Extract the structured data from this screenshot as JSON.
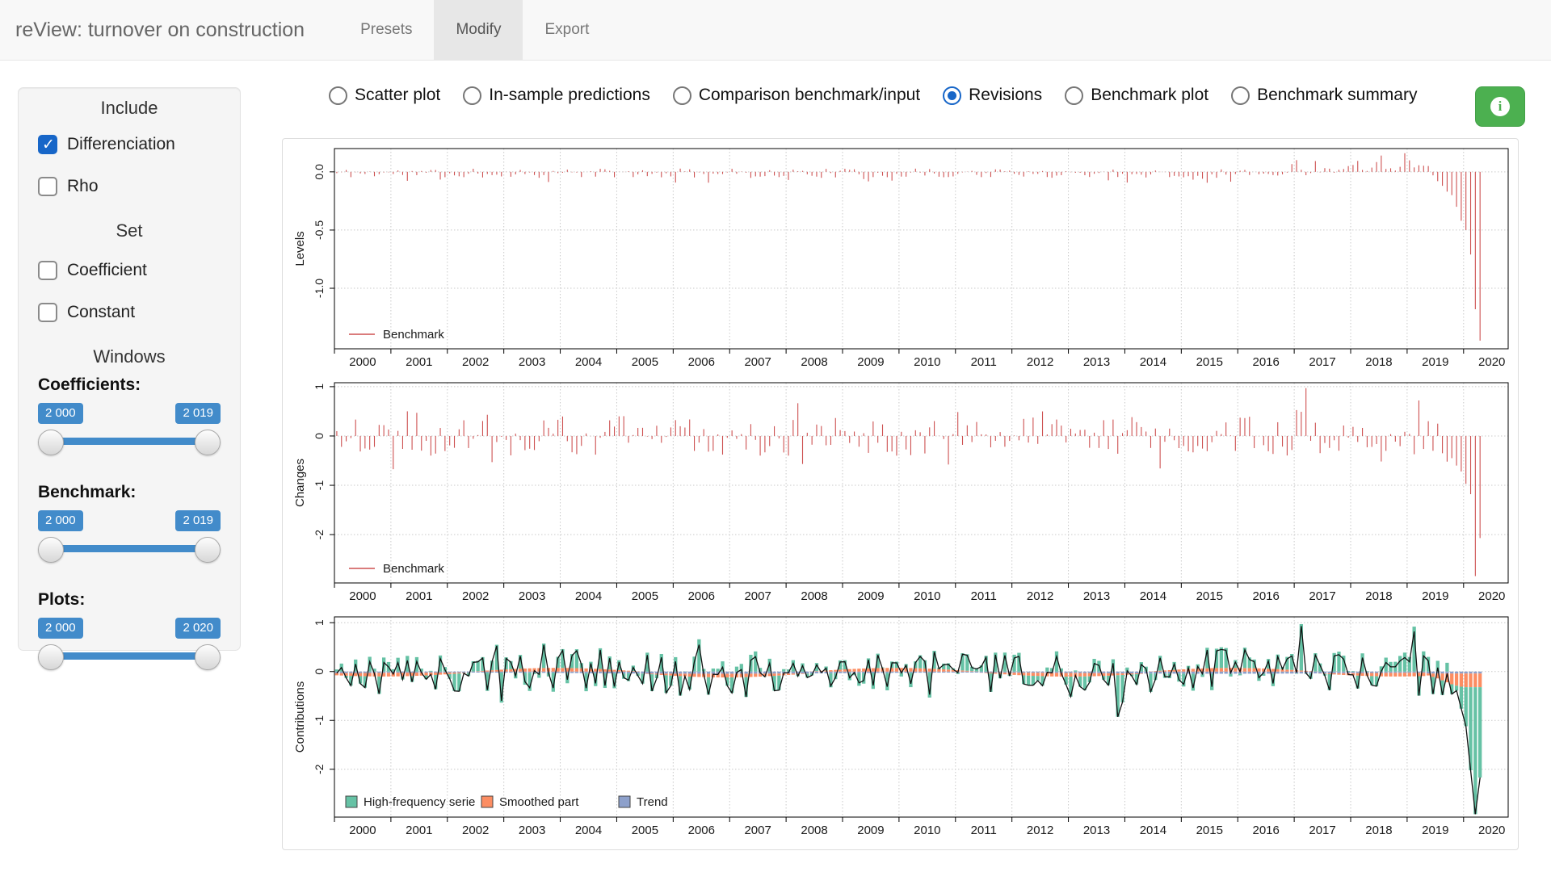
{
  "colors": {
    "accent_blue": "#428bca",
    "selection_blue": "#1766c8",
    "benchmark_red": "#cd5050",
    "hf_green": "#66c2a5",
    "smoothed_orange": "#fc8d62",
    "trend_blue": "#8da0cb",
    "button_green": "#4cb050"
  },
  "header": {
    "title": "reView: turnover on construction",
    "tabs": [
      {
        "label": "Presets",
        "active": false
      },
      {
        "label": "Modify",
        "active": true
      },
      {
        "label": "Export",
        "active": false
      }
    ]
  },
  "sidebar": {
    "include_heading": "Include",
    "include_items": [
      {
        "label": "Differenciation",
        "checked": true
      },
      {
        "label": "Rho",
        "checked": false
      }
    ],
    "set_heading": "Set",
    "set_items": [
      {
        "label": "Coefficient",
        "checked": false
      },
      {
        "label": "Constant",
        "checked": false
      }
    ],
    "windows_heading": "Windows",
    "sliders": [
      {
        "label": "Coefficients:",
        "from": "2 000",
        "to": "2 019"
      },
      {
        "label": "Benchmark:",
        "from": "2 000",
        "to": "2 019"
      },
      {
        "label": "Plots:",
        "from": "2 000",
        "to": "2 020"
      }
    ]
  },
  "plot_selector": {
    "options": [
      "Scatter plot",
      "In-sample predictions",
      "Comparison benchmark/input",
      "Revisions",
      "Benchmark plot",
      "Benchmark summary"
    ],
    "selected": "Revisions"
  },
  "info_button": {
    "icon": "info-icon"
  },
  "chart_data": {
    "type": "bar",
    "frequency": "monthly",
    "n_months": 244,
    "x_domain": [
      2000,
      2020.79
    ],
    "x_tick_years": [
      2000,
      2001,
      2002,
      2003,
      2004,
      2005,
      2006,
      2007,
      2008,
      2009,
      2010,
      2011,
      2012,
      2013,
      2014,
      2015,
      2016,
      2017,
      2018,
      2019,
      2020
    ],
    "charts": [
      {
        "id": "levels",
        "ylabel": "Levels",
        "kind": "spike",
        "color": "#cd5050",
        "ylim": [
          -1.52,
          0.2
        ],
        "yticks": [
          {
            "v": 0,
            "label": "0.0"
          },
          {
            "v": -0.5,
            "label": "-0.5"
          },
          {
            "v": -1,
            "label": "-1.0"
          }
        ],
        "legend": {
          "style": "line",
          "items": [
            {
              "label": "Benchmark",
              "color": "#cd5050"
            }
          ]
        },
        "synthetic_gen": {
          "seed": 11,
          "amp": 0.08,
          "bias": -0.012,
          "dip_prob": 0.1,
          "dip": -0.045,
          "pos_from": 2016.6,
          "pos_amp": 0.14
        },
        "specials": [
          {
            "i": 222,
            "v": 0.14
          },
          {
            "i": 227,
            "v": 0.16
          }
        ],
        "tail": [
          0.05,
          -0.03,
          -0.08,
          -0.12,
          -0.17,
          -0.2,
          -0.3,
          -0.42,
          -0.5,
          -0.71,
          -1.18,
          -1.45
        ]
      },
      {
        "id": "changes",
        "ylabel": "Changes",
        "kind": "spike",
        "color": "#cd5050",
        "ylim": [
          -2.98,
          1.08
        ],
        "yticks": [
          {
            "v": 1,
            "label": "1"
          },
          {
            "v": 0,
            "label": "0"
          },
          {
            "v": -1,
            "label": "-1"
          },
          {
            "v": -2,
            "label": "-2"
          }
        ],
        "legend": {
          "style": "line",
          "items": [
            {
              "label": "Benchmark",
              "color": "#cd5050"
            }
          ]
        },
        "synthetic_gen": {
          "seed": 22,
          "amp": 0.8,
          "big_prob": 0.1,
          "big_mult": 1.7
        },
        "specials": [
          {
            "i": 15,
            "v": 0.5
          },
          {
            "i": 17,
            "v": 0.47
          },
          {
            "i": 32,
            "v": 0.43
          },
          {
            "i": 206,
            "v": 0.97
          },
          {
            "i": 230,
            "v": 0.72
          }
        ],
        "tail": [
          0.3,
          -0.3,
          0.25,
          -0.35,
          -0.52,
          -0.45,
          -0.6,
          -0.72,
          -0.97,
          -1.18,
          -2.84,
          -2.07
        ]
      },
      {
        "id": "contributions",
        "ylabel": "Contributions",
        "kind": "stacked",
        "line_color": "#111111",
        "ylim": [
          -2.98,
          1.12
        ],
        "yticks": [
          {
            "v": 1,
            "label": "1"
          },
          {
            "v": 0,
            "label": "0"
          },
          {
            "v": -1,
            "label": "-1"
          },
          {
            "v": -2,
            "label": "-2"
          }
        ],
        "legend": {
          "style": "squares",
          "items": [
            {
              "label": "High-frequency serie",
              "color": "#66c2a5"
            },
            {
              "label": "Smoothed part",
              "color": "#fc8d62"
            },
            {
              "label": "Trend",
              "color": "#8da0cb"
            }
          ]
        },
        "components": [
          {
            "name": "Trend",
            "color": "#8da0cb",
            "synthetic_gen": {
              "wave": true,
              "base": -0.033,
              "wave_amp": 0.012,
              "wave_freq": 0.7,
              "wave_phase": 2000
            },
            "tail": [
              -0.04,
              -0.04,
              -0.04,
              -0.04,
              -0.04,
              -0.04,
              -0.04,
              -0.04,
              -0.04,
              -0.04,
              -0.04,
              -0.04
            ]
          },
          {
            "name": "Smoothed part",
            "color": "#fc8d62",
            "synthetic_gen": {
              "wave": true,
              "base": 0,
              "wave_amp": 0.075,
              "wave_freq": 1.05,
              "wave_phase": 2002.4
            },
            "tail": [
              -0.04,
              -0.07,
              -0.1,
              -0.14,
              -0.18,
              -0.22,
              -0.25,
              -0.27,
              -0.28,
              -0.28,
              -0.28,
              -0.28
            ]
          },
          {
            "name": "High-frequency serie",
            "color": "#66c2a5",
            "synthetic_gen": {
              "seed": 33,
              "amp": 0.85,
              "big_prob": 0.08,
              "big_mult": 1.6
            },
            "specials": [
              {
                "i": 166,
                "v": -0.85
              },
              {
                "i": 205,
                "v": 0.95
              },
              {
                "i": 229,
                "v": 0.92
              }
            ],
            "tail": [
              0.3,
              -0.35,
              0.22,
              -0.3,
              0.18,
              -0.2,
              -0.1,
              -0.45,
              -0.8,
              -1.7,
              -2.6,
              -1.85
            ]
          }
        ]
      }
    ]
  }
}
